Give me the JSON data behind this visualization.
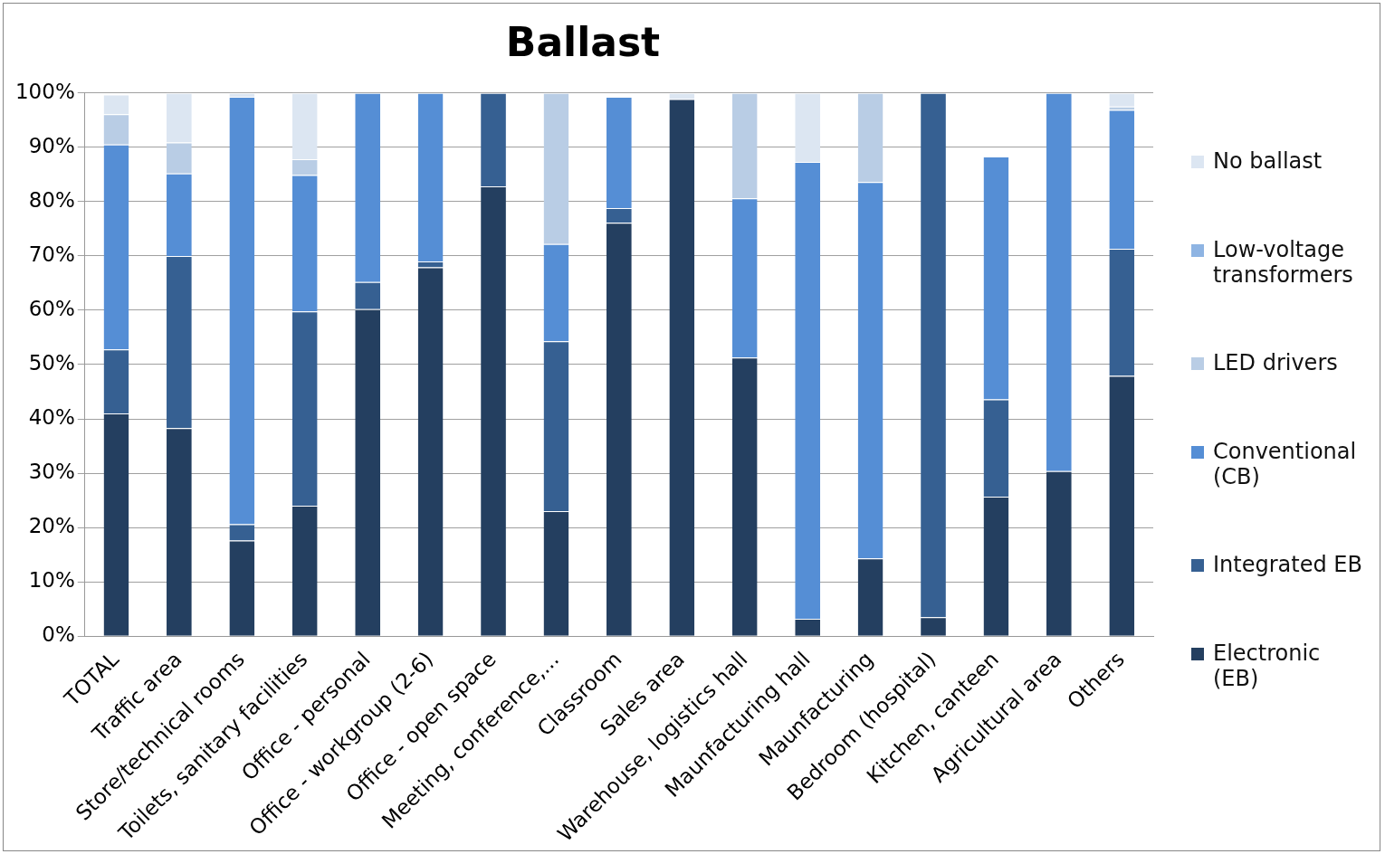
{
  "chart_data": {
    "type": "bar",
    "title": "Ballast",
    "stacked": true,
    "grid": "y",
    "legend": "right",
    "categories": [
      "TOTAL",
      "Traffic area",
      "Store/technical rooms",
      "Toilets, sanitary facilities",
      "Office - personal",
      "Office - workgroup (2-6)",
      "Office - open space",
      "Meeting, conference,...",
      "Classroom",
      "Sales area",
      "Warehouse, logistics hall",
      "Maunfacturing hall",
      "Maunfacturing",
      "Bedroom (hospital)",
      "Kitchen, canteen",
      "Agricultural area",
      "Others"
    ],
    "ylim": [
      0,
      100
    ],
    "yticks": [
      {
        "value": 0,
        "label": "0%"
      },
      {
        "value": 10,
        "label": "10%"
      },
      {
        "value": 20,
        "label": "20%"
      },
      {
        "value": 30,
        "label": "30%"
      },
      {
        "value": 40,
        "label": "40%"
      },
      {
        "value": 50,
        "label": "50%"
      },
      {
        "value": 60,
        "label": "60%"
      },
      {
        "value": 70,
        "label": "70%"
      },
      {
        "value": 80,
        "label": "80%"
      },
      {
        "value": 90,
        "label": "90%"
      },
      {
        "value": 100,
        "label": "100%"
      }
    ],
    "series": [
      {
        "name": "Electronic (EB)",
        "color": "#243f60",
        "values": [
          41,
          38.3,
          17.6,
          24,
          60.2,
          67.9,
          82.8,
          23,
          76.1,
          98.9,
          51.3,
          3.2,
          14.3,
          3.5,
          25.7,
          30.4,
          47.9
        ]
      },
      {
        "name": "Integrated EB",
        "color": "#366092",
        "values": [
          11.8,
          31.7,
          3,
          35.8,
          5,
          1.1,
          17.2,
          31.3,
          2.7,
          0,
          0,
          0,
          0,
          96.5,
          17.9,
          0,
          23.4
        ]
      },
      {
        "name": "Conventional (CB)",
        "color": "#558ed5",
        "values": [
          37.7,
          15.2,
          78.7,
          25.1,
          34.8,
          31,
          0,
          17.9,
          20.5,
          0,
          29.3,
          84.1,
          69.3,
          0,
          44.7,
          69.6,
          25.6
        ]
      },
      {
        "name": "LED drivers",
        "color": "#b9cde5",
        "values": [
          5.6,
          5.7,
          0,
          2.9,
          0,
          0,
          0,
          27.8,
          0,
          0,
          19.4,
          0,
          16.4,
          0,
          0,
          0,
          0.6
        ]
      },
      {
        "name": "Low-voltage transformers",
        "color": "#8eb4e3",
        "values": [
          0,
          0,
          0,
          0,
          0,
          0,
          0,
          0,
          0,
          0,
          0,
          0,
          0,
          0,
          0,
          0,
          0
        ]
      },
      {
        "name": "No ballast",
        "color": "#dce6f2",
        "values": [
          3.6,
          9.1,
          0.7,
          12.2,
          0,
          0,
          0,
          0,
          0,
          1.1,
          0,
          12.7,
          0,
          0,
          0,
          0,
          2.5
        ]
      }
    ]
  }
}
